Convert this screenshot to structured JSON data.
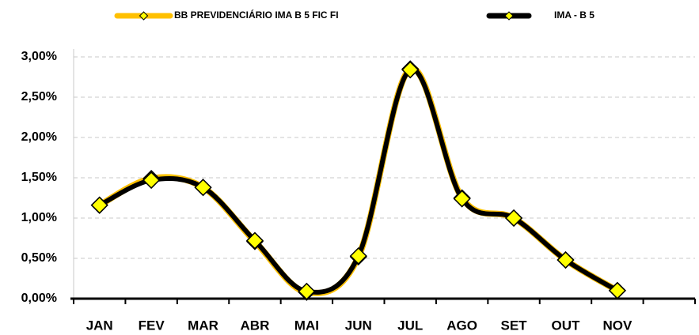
{
  "chart_data": {
    "type": "line",
    "categories": [
      "JAN",
      "FEV",
      "MAR",
      "ABR",
      "MAI",
      "JUN",
      "JUL",
      "AGO",
      "SET",
      "OUT",
      "NOV",
      null
    ],
    "series": [
      {
        "name": "BB PREVIDENCIÁRIO IMA B 5 FIC FI",
        "color": "#ffc000",
        "values": [
          1.16,
          1.49,
          1.38,
          0.71,
          0.08,
          0.52,
          2.85,
          1.25,
          1.0,
          0.48,
          0.1,
          null
        ]
      },
      {
        "name": "IMA - B 5",
        "color": "#000000",
        "values": [
          1.16,
          1.47,
          1.38,
          0.72,
          0.09,
          0.53,
          2.84,
          1.24,
          1.0,
          0.48,
          0.1,
          null
        ]
      }
    ],
    "ylim": [
      0,
      3
    ],
    "yticks": [
      {
        "value": 0,
        "label": "0,00%"
      },
      {
        "value": 0.5,
        "label": "0,50%"
      },
      {
        "value": 1,
        "label": "1,00%"
      },
      {
        "value": 1.5,
        "label": "1,50%"
      },
      {
        "value": 2,
        "label": "2,00%"
      },
      {
        "value": 2.5,
        "label": "2,50%"
      },
      {
        "value": 3,
        "label": "3,00%"
      }
    ],
    "grid": true,
    "legend": "top"
  }
}
